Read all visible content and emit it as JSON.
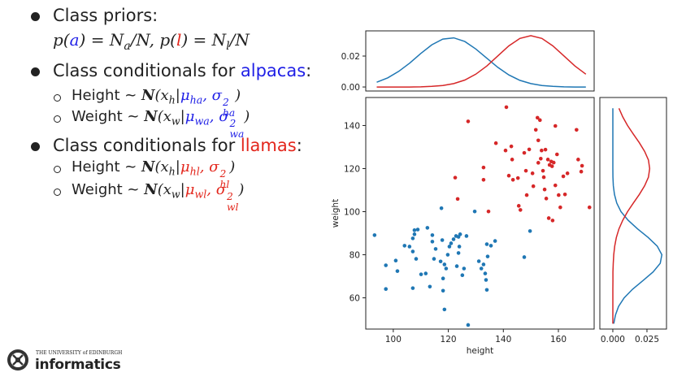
{
  "slide": {
    "colors": {
      "blue": "#1f1fe6",
      "red": "#e3261c"
    },
    "lines": [
      {
        "bullet": "filled",
        "parts": [
          {
            "t": "Class priors:"
          }
        ]
      },
      {
        "bullet": "none",
        "parts": [
          {
            "t": "p(",
            "font": "math"
          },
          {
            "t": "a",
            "font": "math",
            "color": "blue"
          },
          {
            "t": ") = N",
            "font": "math"
          },
          {
            "t": "a",
            "font": "math",
            "pos": "sub"
          },
          {
            "t": "/N, p(",
            "font": "math"
          },
          {
            "t": "l",
            "font": "math",
            "color": "red"
          },
          {
            "t": ") = N",
            "font": "math"
          },
          {
            "t": "l",
            "font": "math",
            "pos": "sub"
          },
          {
            "t": "/N",
            "font": "math"
          }
        ]
      },
      {
        "bullet": "filled",
        "parts": [
          {
            "t": "Class conditionals for "
          },
          {
            "t": "alpacas",
            "color": "blue"
          },
          {
            "t": ":"
          }
        ]
      },
      {
        "bullet": "hollow",
        "parts": [
          {
            "t": "Height ~ "
          },
          {
            "t": "N",
            "font": "cal"
          },
          {
            "t": "(x",
            "font": "math"
          },
          {
            "t": "h",
            "font": "math",
            "pos": "sub"
          },
          {
            "t": "|",
            "font": "math"
          },
          {
            "t": "μ",
            "font": "math",
            "color": "blue"
          },
          {
            "t": "ha",
            "font": "math",
            "color": "blue",
            "pos": "sub"
          },
          {
            "t": ", σ",
            "font": "math",
            "color": "blue"
          },
          {
            "sup": "2",
            "sub": "ha",
            "font": "math",
            "color": "blue"
          },
          {
            "t": ")",
            "font": "math"
          }
        ]
      },
      {
        "bullet": "hollow",
        "parts": [
          {
            "t": "Weight ~ "
          },
          {
            "t": "N",
            "font": "cal"
          },
          {
            "t": "(x",
            "font": "math"
          },
          {
            "t": "w",
            "font": "math",
            "pos": "sub"
          },
          {
            "t": "|",
            "font": "math"
          },
          {
            "t": "μ",
            "font": "math",
            "color": "blue"
          },
          {
            "t": "wa",
            "font": "math",
            "color": "blue",
            "pos": "sub"
          },
          {
            "t": ", σ",
            "font": "math",
            "color": "blue"
          },
          {
            "sup": "2",
            "sub": "wa",
            "font": "math",
            "color": "blue"
          },
          {
            "t": ")",
            "font": "math"
          }
        ]
      },
      {
        "bullet": "filled",
        "parts": [
          {
            "t": "Class conditionals for "
          },
          {
            "t": "llamas",
            "color": "red"
          },
          {
            "t": ":"
          }
        ]
      },
      {
        "bullet": "hollow",
        "parts": [
          {
            "t": "Height ~ "
          },
          {
            "t": "N",
            "font": "cal"
          },
          {
            "t": "(x",
            "font": "math"
          },
          {
            "t": "h",
            "font": "math",
            "pos": "sub"
          },
          {
            "t": "|",
            "font": "math"
          },
          {
            "t": "μ",
            "font": "math",
            "color": "red"
          },
          {
            "t": "hl",
            "font": "math",
            "color": "red",
            "pos": "sub"
          },
          {
            "t": ", σ",
            "font": "math",
            "color": "red"
          },
          {
            "sup": "2",
            "sub": "hl",
            "font": "math",
            "color": "red"
          },
          {
            "t": ")",
            "font": "math"
          }
        ]
      },
      {
        "bullet": "hollow",
        "parts": [
          {
            "t": "Weight ~ "
          },
          {
            "t": "N",
            "font": "cal"
          },
          {
            "t": "(x",
            "font": "math"
          },
          {
            "t": "w",
            "font": "math",
            "pos": "sub"
          },
          {
            "t": "|",
            "font": "math"
          },
          {
            "t": "μ",
            "font": "math",
            "color": "red"
          },
          {
            "t": "wl",
            "font": "math",
            "color": "red",
            "pos": "sub"
          },
          {
            "t": ", σ",
            "font": "math",
            "color": "red"
          },
          {
            "sup": "2",
            "sub": "wl",
            "font": "math",
            "color": "red"
          },
          {
            "t": ")",
            "font": "math"
          }
        ]
      }
    ],
    "logo": {
      "university": "THE UNIVERSITY of EDINBURGH",
      "school": "informatics"
    }
  },
  "chart_data": [
    {
      "type": "line",
      "orientation": "horizontal",
      "x": [
        94,
        98,
        102,
        106,
        110,
        114,
        118,
        122,
        126,
        130,
        134,
        138,
        142,
        146,
        150,
        154,
        158,
        162,
        166,
        170
      ],
      "series": [
        {
          "color": "#1f77b4",
          "values": [
            0.0031,
            0.0059,
            0.0101,
            0.0155,
            0.0217,
            0.0273,
            0.031,
            0.0318,
            0.0294,
            0.0246,
            0.0186,
            0.0127,
            0.0078,
            0.0043,
            0.0022,
            0.001,
            0.0004,
            0.0001,
            0,
            0
          ]
        },
        {
          "color": "#d62728",
          "values": [
            0,
            0,
            0,
            0,
            0.0001,
            0.0004,
            0.0009,
            0.0022,
            0.0045,
            0.0083,
            0.0136,
            0.0201,
            0.0266,
            0.0314,
            0.0332,
            0.0314,
            0.0266,
            0.0201,
            0.0136,
            0.0083
          ]
        }
      ],
      "xlim": [
        90,
        173
      ],
      "ylim": [
        -0.0026,
        0.0363
      ],
      "yticks": [
        {
          "value": 0,
          "label": "0.00"
        },
        {
          "value": 0.02,
          "label": "0.02"
        }
      ]
    },
    {
      "type": "scatter",
      "xlabel": "height",
      "ylabel": "weight",
      "series": [
        {
          "color": "#1f77b4",
          "x": [
            93.2,
            97.3,
            97.3,
            100.9,
            101.5,
            104.1,
            105.9,
            107.1,
            107.7,
            107.7,
            108.9,
            107.1,
            108.3,
            107.1,
            110.1,
            111.8,
            112.4,
            114.2,
            114.2,
            114.8,
            115.4,
            113.3,
            117.2,
            117.5,
            117.8,
            118.1,
            118.1,
            118.6,
            119.2,
            119.8,
            120.4,
            121.0,
            121.9,
            122.8,
            123.7,
            124.3,
            118.6,
            124.0,
            123.1,
            123.7,
            125.1,
            125.7,
            126.6,
            127.2,
            129.6,
            131.1,
            132.0,
            132.8,
            133.4,
            133.7,
            134.0,
            134.3,
            134.0,
            135.5,
            137.0,
            147.6,
            149.7
          ],
          "values": [
            89.1,
            75.1,
            64.1,
            77.3,
            72.4,
            84.2,
            83.8,
            87.6,
            89.5,
            91.4,
            91.7,
            81.5,
            78.1,
            64.5,
            70.9,
            71.3,
            92.5,
            89.1,
            86.1,
            78.1,
            82.7,
            65.2,
            76.9,
            101.6,
            86.8,
            69.0,
            63.3,
            75.5,
            73.6,
            80.0,
            83.8,
            85.3,
            87.2,
            88.7,
            88.3,
            89.5,
            54.6,
            83.8,
            74.7,
            80.8,
            70.5,
            73.6,
            88.7,
            47.4,
            100.1,
            77.0,
            73.6,
            75.5,
            71.3,
            68.3,
            63.7,
            79.2,
            84.9,
            84.2,
            86.4,
            78.9,
            91.0
          ]
        },
        {
          "color": "#d62728",
          "x": [
            127.2,
            122.5,
            123.4,
            132.8,
            132.8,
            137.3,
            134.6,
            141.1,
            140.8,
            142.9,
            143.2,
            142.0,
            143.5,
            145.3,
            145.6,
            146.2,
            147.6,
            148.2,
            148.5,
            149.4,
            150.6,
            150.9,
            151.8,
            152.7,
            152.4,
            153.3,
            153.6,
            153.9,
            152.7,
            154.4,
            154.7,
            155.0,
            155.6,
            155.3,
            156.2,
            156.8,
            157.4,
            157.7,
            158.3,
            156.5,
            157.9,
            158.9,
            160.1,
            160.7,
            159.5,
            161.8,
            162.4,
            163.3,
            166.6,
            167.2,
            168.3,
            168.6,
            171.3,
            158.9
          ],
          "values": [
            141.9,
            115.8,
            105.9,
            120.5,
            114.8,
            131.8,
            100.1,
            148.5,
            128.4,
            130.3,
            124.2,
            116.7,
            114.8,
            115.6,
            102.7,
            100.8,
            127.3,
            119.0,
            107.7,
            128.9,
            117.8,
            111.8,
            138.0,
            133.1,
            143.6,
            142.5,
            124.6,
            128.4,
            122.7,
            119.0,
            116.0,
            110.3,
            106.1,
            128.8,
            124.2,
            121.7,
            123.3,
            121.1,
            122.8,
            97.0,
            95.9,
            139.8,
            107.7,
            102.0,
            126.6,
            116.4,
            108.0,
            117.8,
            138.0,
            124.2,
            118.6,
            121.3,
            102.0,
            112.2
          ]
        }
      ],
      "xlim": [
        90,
        173
      ],
      "ylim": [
        45.5,
        153
      ],
      "xticks": [
        100,
        120,
        140,
        160
      ],
      "yticks": [
        60,
        80,
        100,
        120,
        140
      ]
    },
    {
      "type": "line",
      "orientation": "vertical",
      "y": [
        48,
        52,
        56,
        60,
        64,
        68,
        72,
        76,
        80,
        84,
        88,
        92,
        96,
        100,
        104,
        108,
        112,
        116,
        120,
        124,
        128,
        132,
        136,
        140,
        144,
        148
      ],
      "series": [
        {
          "color": "#1f77b4",
          "values": [
            0.0007,
            0.0019,
            0.0042,
            0.0083,
            0.0144,
            0.0221,
            0.0295,
            0.0347,
            0.0359,
            0.0325,
            0.0259,
            0.0181,
            0.0112,
            0.006,
            0.0029,
            0.0012,
            0.0004,
            0.0001,
            0,
            0,
            0,
            0,
            0,
            0,
            0,
            0
          ]
        },
        {
          "color": "#d62728",
          "values": [
            0,
            0,
            0,
            0,
            0,
            0.0001,
            0.0001,
            0.0003,
            0.0007,
            0.0014,
            0.0026,
            0.0045,
            0.0073,
            0.0108,
            0.015,
            0.0194,
            0.0233,
            0.0261,
            0.027,
            0.0261,
            0.0233,
            0.0194,
            0.015,
            0.0108,
            0.0073,
            0.0045
          ]
        }
      ],
      "xlim": [
        -0.0095,
        0.0393
      ],
      "ylim": [
        45.5,
        153
      ],
      "xticks": [
        {
          "value": 0,
          "label": "0.000"
        },
        {
          "value": 0.025,
          "label": "0.025"
        }
      ]
    }
  ]
}
